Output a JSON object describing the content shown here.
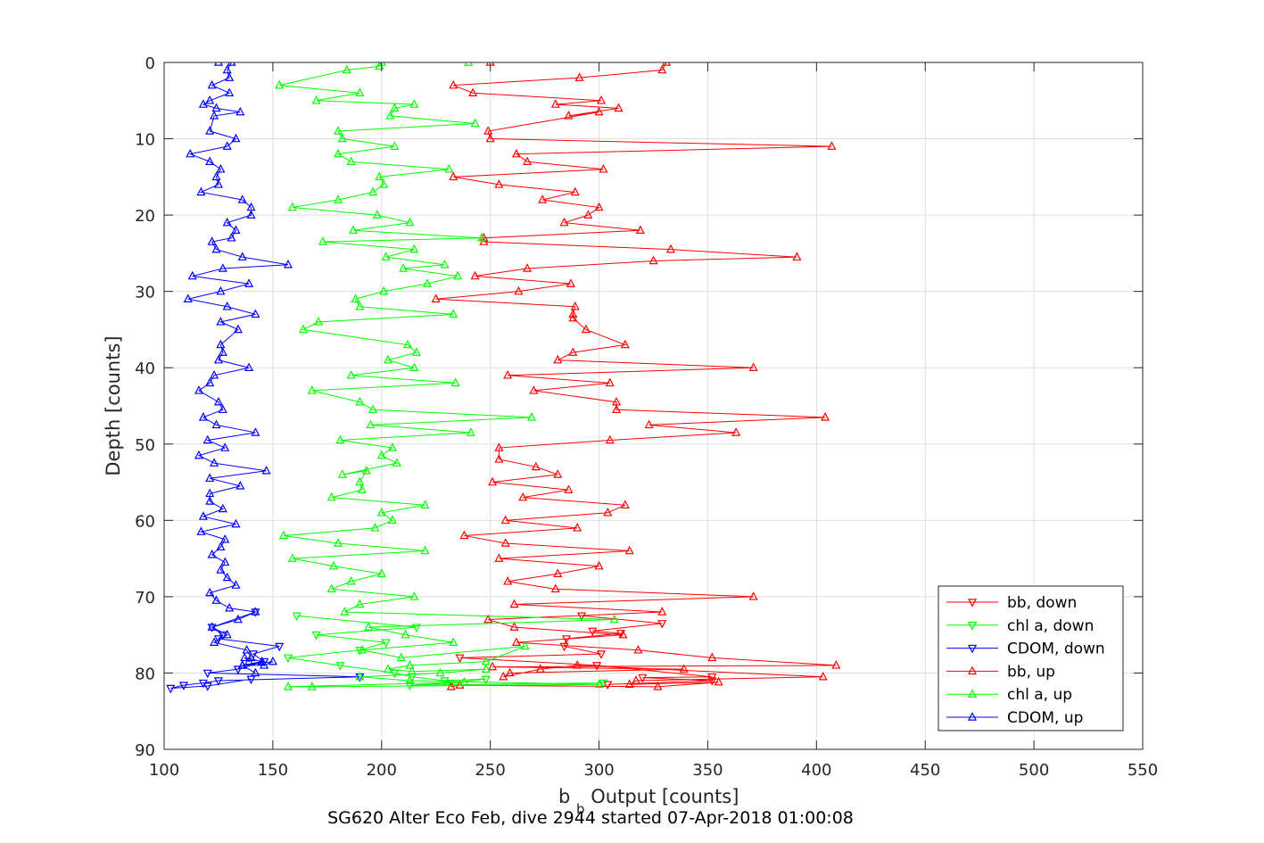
{
  "chart_data": {
    "type": "line",
    "xlabel_main": "b",
    "xlabel_sub": "b",
    "xlabel_rest": " Output [counts]",
    "ylabel": "Depth [counts]",
    "subtitle": "SG620 Alter Eco Feb, dive 2944 started 07-Apr-2018 01:00:08",
    "xlim": [
      100,
      550
    ],
    "ylim": [
      0,
      90
    ],
    "y_reversed": true,
    "grid": true,
    "x_ticks": [
      "100",
      "150",
      "200",
      "250",
      "300",
      "350",
      "400",
      "450",
      "500",
      "550"
    ],
    "y_ticks": [
      "0",
      "10",
      "20",
      "30",
      "40",
      "50",
      "60",
      "70",
      "80",
      "90"
    ],
    "legend_position": "bottom-right",
    "series": [
      {
        "name": "bb, down",
        "color": "#ff0000",
        "marker": "triangle-down",
        "x": [
          292,
          329,
          297,
          310,
          285,
          284,
          301,
          236,
          299,
          352,
          320,
          352,
          304
        ],
        "y": [
          72.5,
          73.5,
          74.5,
          74.8,
          75.5,
          76.5,
          77.5,
          78,
          79,
          80.5,
          80.6,
          81,
          81.5
        ]
      },
      {
        "name": "chl a, down",
        "color": "#00ff00",
        "marker": "triangle-down",
        "x": [
          161,
          216,
          170,
          202,
          190,
          157,
          181,
          206,
          214,
          229,
          248,
          232,
          213,
          302
        ],
        "y": [
          72.5,
          74,
          75,
          76,
          77,
          78,
          79,
          80,
          80.5,
          81,
          80.8,
          81.3,
          81.6,
          81.3
        ]
      },
      {
        "name": "CDOM, down",
        "color": "#0000ff",
        "marker": "triangle-down",
        "x": [
          142,
          122,
          127,
          125,
          153,
          141,
          146,
          134,
          120,
          190,
          125,
          118,
          109,
          103,
          120,
          140
        ],
        "y": [
          72,
          74,
          75,
          75.5,
          76.5,
          77.5,
          78.5,
          79.5,
          80,
          80.5,
          81,
          81.3,
          81.6,
          82,
          81.7,
          80.8
        ]
      },
      {
        "name": "bb, up",
        "color": "#ff0000",
        "marker": "triangle-up",
        "x": [
          250,
          331,
          329,
          291,
          233,
          242,
          301,
          280,
          309,
          286,
          300,
          249,
          250,
          407,
          262,
          267,
          302,
          233,
          254,
          289,
          274,
          300,
          295,
          284,
          319,
          247,
          247,
          333,
          391,
          325,
          267,
          243,
          287,
          263,
          225,
          289,
          288,
          288,
          294,
          312,
          288,
          281,
          371,
          258,
          305,
          270,
          308,
          308,
          404,
          323,
          363,
          305,
          254,
          254,
          271,
          281,
          251,
          286,
          265,
          312,
          304,
          257,
          290,
          238,
          257,
          314,
          254,
          300,
          281,
          258,
          280,
          371,
          261,
          329,
          249,
          261,
          311,
          262,
          318,
          352,
          409,
          251,
          339,
          259,
          256,
          273,
          290,
          403,
          317,
          314,
          355,
          327,
          236,
          232
        ],
        "y": [
          0,
          0,
          1,
          2,
          3,
          4,
          5,
          5.5,
          6,
          7,
          6.5,
          9,
          10,
          11,
          12,
          13,
          14,
          15,
          16,
          17,
          18,
          19,
          20,
          21,
          22,
          23,
          23.5,
          24.5,
          25.5,
          26,
          27,
          28,
          29,
          30,
          31,
          32,
          33,
          33.5,
          35,
          37,
          38,
          39,
          40,
          41,
          42,
          43,
          44.5,
          45.5,
          46.5,
          47.5,
          48.5,
          49.5,
          50.5,
          52,
          53,
          54,
          55,
          56,
          57,
          58,
          59,
          60,
          61,
          62,
          63,
          64,
          65,
          66,
          67,
          68,
          69,
          70,
          71,
          72,
          73,
          74,
          75,
          76,
          77,
          78,
          79,
          79.2,
          79.5,
          80,
          80.5,
          79.5,
          79,
          80.5,
          81,
          81.5,
          81.2,
          81.8,
          81.6,
          81.8
        ]
      },
      {
        "name": "chl a, up",
        "color": "#00ff00",
        "marker": "triangle-up",
        "x": [
          240,
          200,
          199,
          184,
          153,
          190,
          170,
          215,
          206,
          204,
          243,
          180,
          182,
          206,
          180,
          186,
          231,
          199,
          201,
          196,
          180,
          159,
          198,
          213,
          187,
          246,
          173,
          215,
          202,
          229,
          210,
          235,
          221,
          201,
          188,
          190,
          233,
          171,
          164,
          212,
          216,
          203,
          215,
          186,
          234,
          168,
          190,
          196,
          269,
          195,
          241,
          181,
          205,
          200,
          207,
          182,
          193,
          190,
          191,
          177,
          220,
          200,
          205,
          197,
          155,
          180,
          220,
          159,
          178,
          200,
          186,
          177,
          215,
          190,
          183,
          307,
          194,
          211,
          233,
          191,
          209,
          266,
          248,
          213,
          203,
          214,
          248,
          227,
          190,
          213,
          300,
          168,
          157,
          238
        ],
        "y": [
          0,
          0,
          0.5,
          1,
          3,
          4,
          5,
          5.5,
          6,
          7,
          8,
          9,
          10,
          11,
          12,
          13,
          14,
          15,
          16,
          17,
          18,
          19,
          20,
          21,
          22,
          23,
          23.5,
          24.5,
          25.5,
          26.5,
          27,
          28,
          29,
          30,
          31,
          32,
          33,
          34,
          35,
          37,
          38,
          39,
          40,
          41,
          42,
          43,
          44.5,
          45.5,
          46.5,
          47.5,
          48.5,
          49.5,
          50.5,
          51.5,
          52.5,
          54,
          53.5,
          55,
          56,
          57,
          58,
          59,
          60,
          61,
          62,
          63,
          64,
          65,
          66,
          67,
          68,
          69,
          70,
          71,
          72,
          73,
          74,
          75,
          76,
          77,
          78,
          76.5,
          78.5,
          79,
          79.5,
          79.8,
          79.5,
          80,
          80.5,
          81,
          81.5,
          81.8,
          81.8,
          81.2
        ]
      },
      {
        "name": "CDOM, up",
        "color": "#0000ff",
        "marker": "triangle-up",
        "x": [
          125,
          131,
          129,
          130,
          122,
          130,
          121,
          118,
          124,
          135,
          123,
          121,
          133,
          129,
          112,
          121,
          126,
          124,
          125,
          117,
          136,
          140,
          140,
          129,
          133,
          131,
          122,
          124,
          136,
          157,
          127,
          113,
          139,
          126,
          111,
          129,
          142,
          126,
          134,
          126,
          127,
          125,
          139,
          123,
          121,
          116,
          125,
          127,
          118,
          124,
          142,
          120,
          128,
          116,
          123,
          147,
          121,
          135,
          121,
          121,
          127,
          118,
          133,
          117,
          128,
          126,
          122,
          128,
          126,
          129,
          133,
          121,
          124,
          130,
          142,
          134,
          122,
          129,
          123,
          138,
          140,
          139,
          137,
          145,
          136,
          146,
          150,
          136,
          142
        ],
        "y": [
          0,
          0,
          1,
          2,
          3,
          4,
          5,
          5.5,
          6,
          6.5,
          7,
          9,
          10,
          11,
          12,
          13,
          14,
          15,
          16,
          17,
          18,
          19,
          20,
          21,
          22,
          23,
          23.5,
          24.5,
          25.5,
          26.5,
          27,
          28,
          29,
          30,
          31,
          32,
          33,
          34,
          35,
          37,
          38,
          39,
          40,
          41,
          42,
          43,
          44.5,
          45.5,
          46.5,
          47.5,
          48.5,
          49.5,
          50.5,
          51.5,
          52.5,
          53.5,
          54.5,
          55.5,
          56.5,
          57.5,
          58.5,
          59.5,
          60.5,
          61.5,
          62.5,
          63.5,
          64.5,
          65.5,
          66.5,
          67.5,
          68.5,
          69.5,
          70.5,
          71.5,
          72,
          73,
          74,
          75,
          76,
          77,
          78,
          78.5,
          78,
          78.5,
          79,
          79,
          78.5,
          79,
          80
        ]
      }
    ]
  }
}
